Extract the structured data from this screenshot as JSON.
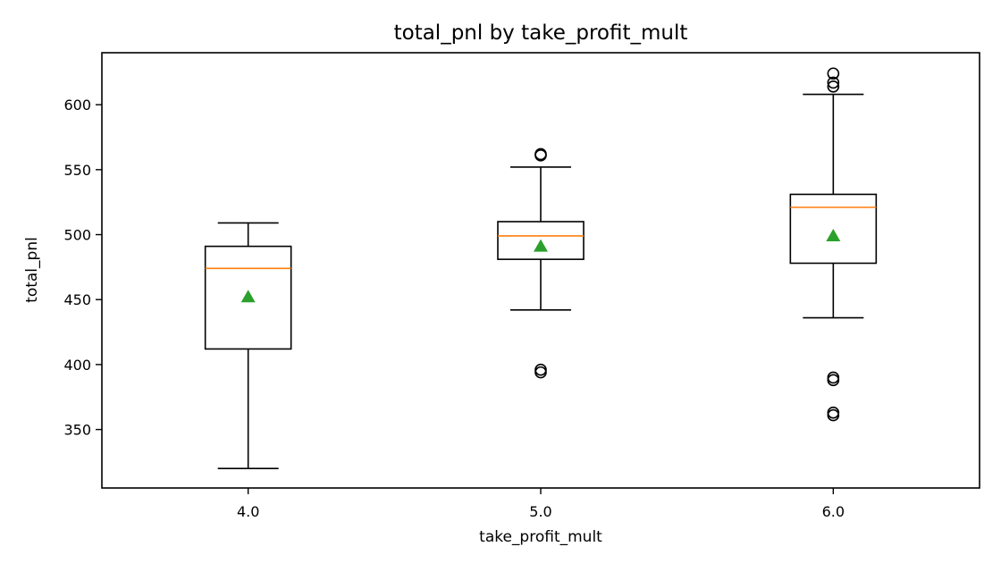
{
  "chart_data": {
    "type": "box",
    "title": "total_pnl by take_profit_mult",
    "xlabel": "take_profit_mult",
    "ylabel": "total_pnl",
    "categories": [
      "4.0",
      "5.0",
      "6.0"
    ],
    "y_ticks": [
      350,
      400,
      450,
      500,
      550,
      600
    ],
    "y_tick_labels": [
      "350",
      "400",
      "450",
      "500",
      "550",
      "600"
    ],
    "ylim": [
      305,
      640
    ],
    "grid": false,
    "boxes": [
      {
        "category": "4.0",
        "whisker_low": 320,
        "q1": 412,
        "median": 474,
        "q3": 491,
        "whisker_high": 509,
        "mean": 452,
        "outliers": []
      },
      {
        "category": "5.0",
        "whisker_low": 442,
        "q1": 481,
        "median": 499,
        "q3": 510,
        "whisker_high": 552,
        "mean": 491,
        "outliers": [
          394,
          396,
          561,
          562
        ]
      },
      {
        "category": "6.0",
        "whisker_low": 436,
        "q1": 478,
        "median": 521,
        "q3": 531,
        "whisker_high": 608,
        "mean": 499,
        "outliers": [
          361,
          363,
          388,
          390,
          614,
          617,
          624
        ]
      }
    ],
    "colors": {
      "box": "#000000",
      "median": "#ff7f0e",
      "mean": "#2ca02c",
      "outlier": "#000000"
    }
  }
}
